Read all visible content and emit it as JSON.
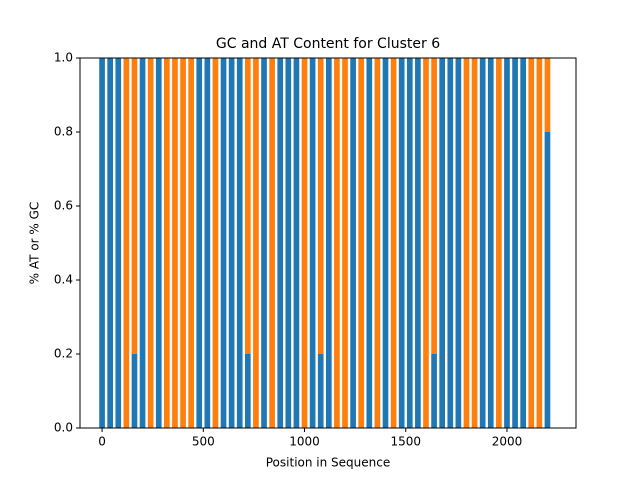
{
  "chart_data": {
    "type": "bar",
    "title": "GC and AT Content for Cluster 6",
    "x_label": "Position in Sequence",
    "y_label": "% AT or % GC",
    "x": [
      0,
      40,
      80,
      120,
      160,
      200,
      240,
      280,
      320,
      360,
      400,
      440,
      480,
      520,
      560,
      600,
      640,
      680,
      720,
      760,
      800,
      840,
      880,
      920,
      960,
      1000,
      1040,
      1080,
      1120,
      1160,
      1200,
      1240,
      1280,
      1320,
      1360,
      1400,
      1440,
      1480,
      1520,
      1560,
      1600,
      1640,
      1680,
      1720,
      1760,
      1800,
      1840,
      1880,
      1920,
      1960,
      2000,
      2040,
      2080,
      2120,
      2160,
      2200
    ],
    "series": [
      {
        "color": "#1f77b4",
        "values": [
          1,
          1,
          1,
          0,
          0.2,
          1,
          0,
          1,
          0,
          0,
          0,
          0,
          1,
          1,
          0,
          1,
          1,
          1,
          0.2,
          0,
          1,
          0,
          1,
          1,
          1,
          0,
          1,
          0.2,
          1,
          0,
          0,
          1,
          0,
          1,
          0,
          1,
          0,
          1,
          1,
          1,
          0,
          0.2,
          1,
          1,
          1,
          0,
          0,
          1,
          1,
          0,
          1,
          1,
          1,
          0,
          0,
          0.8
        ]
      },
      {
        "color": "#ff7f0e",
        "values": [
          0,
          0,
          0,
          1,
          0.8,
          0,
          1,
          0,
          1,
          1,
          1,
          1,
          0,
          0,
          1,
          0,
          0,
          0,
          0.8,
          1,
          0,
          1,
          0,
          0,
          0,
          1,
          0,
          0.8,
          0,
          1,
          1,
          0,
          1,
          0,
          1,
          0,
          1,
          0,
          0,
          0,
          1,
          0.8,
          0,
          0,
          0,
          1,
          1,
          0,
          0,
          1,
          0,
          0,
          0,
          1,
          1,
          0.2
        ]
      }
    ],
    "stacked": true,
    "xlim": [
      -109,
      2341
    ],
    "xticks": [
      0,
      500,
      1000,
      1500,
      2000
    ],
    "ylim": [
      0,
      1
    ],
    "yticks": [
      {
        "value": 0,
        "label": "0.0"
      },
      0.2,
      0.4,
      0.6,
      0.8,
      {
        "value": 1,
        "label": "1.0"
      }
    ]
  }
}
